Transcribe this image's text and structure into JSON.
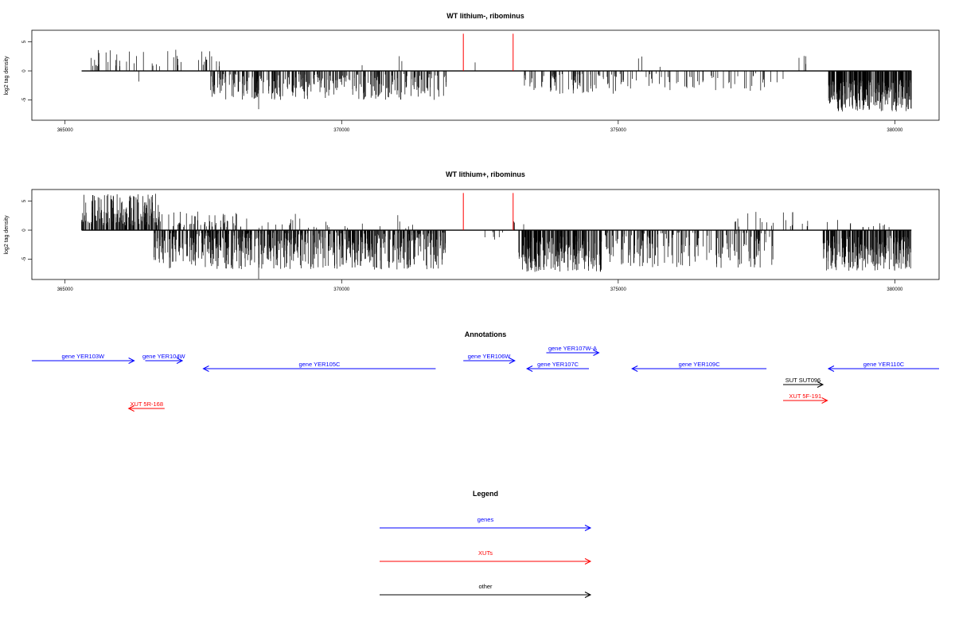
{
  "colors": {
    "gene": "#0000ff",
    "xut": "#ff0000",
    "other": "#000000",
    "peak": "#ff0000",
    "bar": "#000000"
  },
  "chart_data": [
    {
      "type": "bar",
      "title": "WT lithium-, ribominus",
      "ylabel": "log2 tag density",
      "xlim": [
        364400,
        380800
      ],
      "ylim": [
        -8.5,
        7
      ],
      "x_ticks": [
        365000,
        370000,
        375000,
        380000
      ],
      "x_tick_labels": [
        "365000",
        "370000",
        "375000",
        "380000"
      ],
      "y_ticks": [
        5,
        0,
        -5
      ],
      "y_tick_labels": [
        "5",
        "0",
        "-5"
      ],
      "x_range": [
        365300,
        380300
      ],
      "plus_regions": [
        {
          "from": 365300,
          "to": 367800,
          "count": 45,
          "min": 0.8,
          "max": 3.8
        },
        {
          "from": 370000,
          "to": 371400,
          "count": 3,
          "min": 0.5,
          "max": 2.6
        },
        {
          "from": 372350,
          "to": 372450,
          "count": 1,
          "min": 1.4,
          "max": 1.6
        },
        {
          "from": 375300,
          "to": 376200,
          "count": 3,
          "min": 0.7,
          "max": 3.2
        },
        {
          "from": 378100,
          "to": 378600,
          "count": 4,
          "min": 1.0,
          "max": 3.4
        }
      ],
      "minus_regions": [
        {
          "from": 366300,
          "to": 366400,
          "count": 1,
          "min": 1.8,
          "max": 2.2
        },
        {
          "from": 367600,
          "to": 371900,
          "count": 320,
          "min": 0.5,
          "max": 5.0
        },
        {
          "from": 373300,
          "to": 375000,
          "count": 80,
          "min": 0.5,
          "max": 4.0
        },
        {
          "from": 375000,
          "to": 378000,
          "count": 60,
          "min": 0.4,
          "max": 3.5
        },
        {
          "from": 378800,
          "to": 380300,
          "count": 320,
          "min": 1.5,
          "max": 7.0
        }
      ],
      "peaks": [
        {
          "x": 372200,
          "y": 6.4
        },
        {
          "x": 373100,
          "y": 6.4
        }
      ],
      "dip": {
        "x": 368500,
        "y": -6.6
      }
    },
    {
      "type": "bar",
      "title": "WT lithium+, ribominus",
      "ylabel": "log2 tag density",
      "xlim": [
        364400,
        380800
      ],
      "ylim": [
        -8.5,
        7
      ],
      "x_ticks": [
        365000,
        370000,
        375000,
        380000
      ],
      "x_tick_labels": [
        "365000",
        "370000",
        "375000",
        "380000"
      ],
      "y_ticks": [
        5,
        0,
        -5
      ],
      "y_tick_labels": [
        "5",
        "0",
        "-5"
      ],
      "x_range": [
        365300,
        380300
      ],
      "plus_regions": [
        {
          "from": 365300,
          "to": 366700,
          "count": 170,
          "min": 0.8,
          "max": 6.3
        },
        {
          "from": 366700,
          "to": 368200,
          "count": 55,
          "min": 0.5,
          "max": 3.2
        },
        {
          "from": 368200,
          "to": 369600,
          "count": 15,
          "min": 0.4,
          "max": 3.0
        },
        {
          "from": 369600,
          "to": 371600,
          "count": 12,
          "min": 0.3,
          "max": 2.7
        },
        {
          "from": 373100,
          "to": 373300,
          "count": 3,
          "min": 0.5,
          "max": 1.5
        },
        {
          "from": 377000,
          "to": 378400,
          "count": 18,
          "min": 0.6,
          "max": 3.4
        },
        {
          "from": 378400,
          "to": 380300,
          "count": 15,
          "min": 0.5,
          "max": 2.0
        }
      ],
      "minus_regions": [
        {
          "from": 366600,
          "to": 371900,
          "count": 620,
          "min": 0.4,
          "max": 6.8
        },
        {
          "from": 372500,
          "to": 373000,
          "count": 6,
          "min": 0.3,
          "max": 2.0
        },
        {
          "from": 373200,
          "to": 374700,
          "count": 230,
          "min": 1.0,
          "max": 7.2
        },
        {
          "from": 374700,
          "to": 377800,
          "count": 180,
          "min": 0.3,
          "max": 6.5
        },
        {
          "from": 378700,
          "to": 380300,
          "count": 260,
          "min": 1.0,
          "max": 7.0
        }
      ],
      "peaks": [
        {
          "x": 372200,
          "y": 6.4
        },
        {
          "x": 373100,
          "y": 6.4
        }
      ],
      "dip": {
        "x": 368500,
        "y": -8.4
      }
    }
  ],
  "annotations": {
    "title": "Annotations",
    "xlim": [
      364400,
      380800
    ],
    "features": [
      {
        "label": "gene YER103W",
        "type": "gene",
        "strand": "+",
        "start": 364400,
        "end": 366250,
        "row": 0
      },
      {
        "label": "gene YER104W",
        "type": "gene",
        "strand": "+",
        "start": 366450,
        "end": 367120,
        "row": 0
      },
      {
        "label": "gene YER105C",
        "type": "gene",
        "strand": "-",
        "start": 367500,
        "end": 371700,
        "row": 1
      },
      {
        "label": "gene YER106W",
        "type": "gene",
        "strand": "+",
        "start": 372200,
        "end": 373130,
        "row": 0
      },
      {
        "label": "gene YER107W-A",
        "type": "gene",
        "strand": "+",
        "start": 373700,
        "end": 374650,
        "row": -1
      },
      {
        "label": "gene YER107C",
        "type": "gene",
        "strand": "-",
        "start": 373350,
        "end": 374470,
        "row": 1
      },
      {
        "label": "gene YER109C",
        "type": "gene",
        "strand": "-",
        "start": 375250,
        "end": 377680,
        "row": 1
      },
      {
        "label": "gene YER110C",
        "type": "gene",
        "strand": "-",
        "start": 378800,
        "end": 380800,
        "row": 1
      },
      {
        "label": "SUT SUT096",
        "type": "other",
        "strand": "+",
        "start": 377980,
        "end": 378700,
        "row": 3
      },
      {
        "label": "XUT 5R-168",
        "type": "xut",
        "strand": "-",
        "start": 366150,
        "end": 366800,
        "row": 6
      },
      {
        "label": "XUT 5F-191",
        "type": "xut",
        "strand": "+",
        "start": 377980,
        "end": 378780,
        "row": 5
      }
    ]
  },
  "legend": {
    "title": "Legend",
    "items": [
      {
        "label": "genes",
        "type": "gene"
      },
      {
        "label": "XUTs",
        "type": "xut"
      },
      {
        "label": "other",
        "type": "other"
      }
    ]
  }
}
